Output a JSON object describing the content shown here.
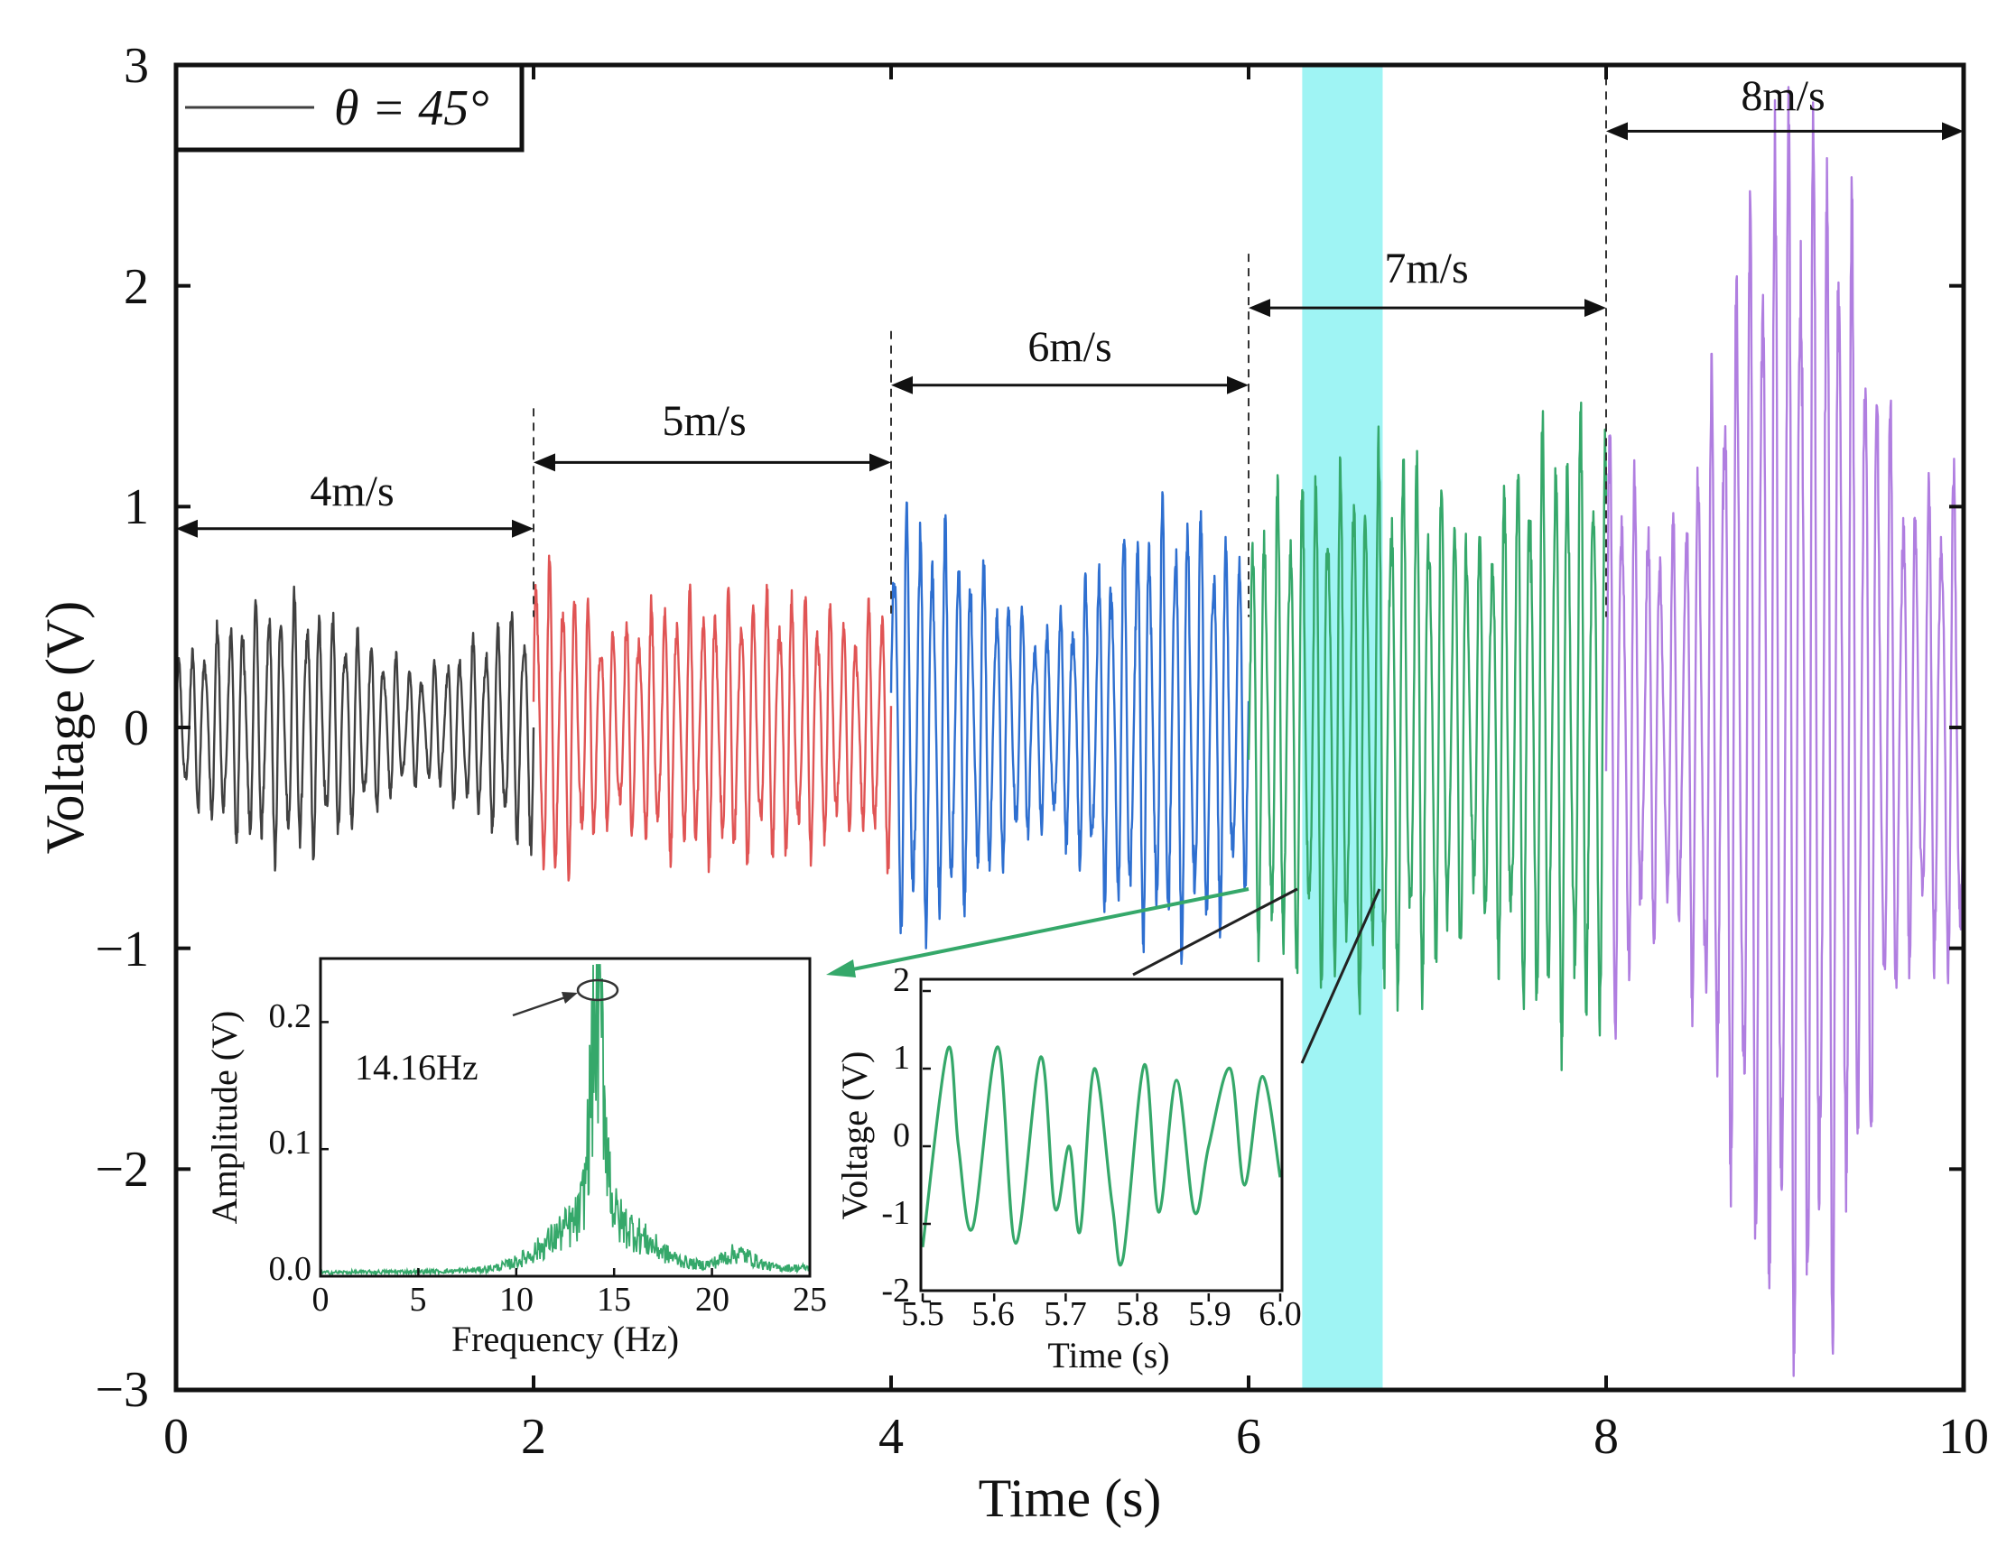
{
  "chart_data": [
    {
      "type": "line",
      "title": "",
      "xlabel": "Time (s)",
      "ylabel": "Voltage (V)",
      "xlim": [
        0,
        10
      ],
      "ylim": [
        -3,
        3
      ],
      "xticks": [
        "0",
        "2",
        "4",
        "6",
        "8",
        "10"
      ],
      "yticks": [
        "3",
        "2",
        "1",
        "0",
        "−1",
        "−2",
        "−3"
      ],
      "legend": {
        "label": "θ = 45°",
        "position": "top-left"
      },
      "highlight_region": {
        "x": [
          6.3,
          6.75
        ],
        "color": "#8ef2f2"
      },
      "series": [
        {
          "name": "4m/s",
          "x_range": [
            0,
            2
          ],
          "color": "#404040",
          "amplitude_envelope": [
            0.45,
            0.6
          ],
          "dominant_frequency_hz": 14
        },
        {
          "name": "5m/s",
          "x_range": [
            2,
            4
          ],
          "color": "#e05454",
          "amplitude_envelope": [
            0.6,
            0.85
          ],
          "dominant_frequency_hz": 14
        },
        {
          "name": "6m/s",
          "x_range": [
            4,
            6
          ],
          "color": "#2e6fd0",
          "amplitude_envelope": [
            0.8,
            1.0
          ],
          "dominant_frequency_hz": 14
        },
        {
          "name": "7m/s",
          "x_range": [
            6,
            8
          ],
          "color": "#35a86a",
          "amplitude_envelope": [
            1.2,
            1.6
          ],
          "dominant_frequency_hz": 14.16
        },
        {
          "name": "8m/s",
          "x_range": [
            8,
            10
          ],
          "color": "#b07ee0",
          "amplitude_envelope": [
            1.5,
            2.9
          ],
          "dominant_frequency_hz": 14
        }
      ],
      "annotations": [
        {
          "label": "4m/s",
          "x_range": [
            0,
            2
          ],
          "y": 0.9
        },
        {
          "label": "5m/s",
          "x_range": [
            2,
            4
          ],
          "y": 1.2
        },
        {
          "label": "6m/s",
          "x_range": [
            4,
            6
          ],
          "y": 1.55
        },
        {
          "label": "7m/s",
          "x_range": [
            6,
            8
          ],
          "y": 1.9
        },
        {
          "label": "8m/s",
          "x_range": [
            8,
            10
          ],
          "y": 2.7
        }
      ]
    },
    {
      "type": "line",
      "title": "",
      "xlabel": "Frequency (Hz)",
      "ylabel": "Amplitude (V)",
      "xlim": [
        0,
        25
      ],
      "ylim": [
        0,
        0.25
      ],
      "xticks": [
        "0",
        "5",
        "10",
        "15",
        "20",
        "25"
      ],
      "yticks": [
        "0.2",
        "0.1",
        "0.0"
      ],
      "series": [
        {
          "name": "spectrum",
          "color": "#35a86a",
          "peak_x": 14.16,
          "peak_y": 0.22,
          "secondary_peak_x": 21.3,
          "secondary_peak_y": 0.03
        }
      ],
      "annotations": [
        {
          "label": "14.16Hz",
          "x": 14.16,
          "y": 0.22
        }
      ]
    },
    {
      "type": "line",
      "title": "",
      "xlabel": "Time (s)",
      "ylabel": "Voltage (V)",
      "xlim": [
        5.5,
        6.0
      ],
      "ylim": [
        -2,
        2
      ],
      "xticks": [
        "5.5",
        "5.6",
        "5.7",
        "5.8",
        "5.9",
        "6.0"
      ],
      "yticks": [
        "2",
        "1",
        "0",
        "-1",
        "-2"
      ],
      "series": [
        {
          "name": "zoom",
          "color": "#35a86a",
          "x": [
            5.5,
            5.535,
            5.55,
            5.57,
            5.605,
            5.63,
            5.665,
            5.685,
            5.705,
            5.72,
            5.74,
            5.765,
            5.78,
            5.81,
            5.83,
            5.855,
            5.88,
            5.9,
            5.93,
            5.95,
            5.975,
            6.0
          ],
          "y": [
            -1.3,
            1.25,
            0.0,
            -1.05,
            1.28,
            -1.25,
            1.15,
            -0.8,
            0.0,
            -1.1,
            1.0,
            -0.75,
            -1.45,
            1.05,
            -0.85,
            0.85,
            -0.85,
            0.0,
            1.0,
            -0.5,
            0.9,
            -0.4
          ]
        }
      ]
    }
  ]
}
